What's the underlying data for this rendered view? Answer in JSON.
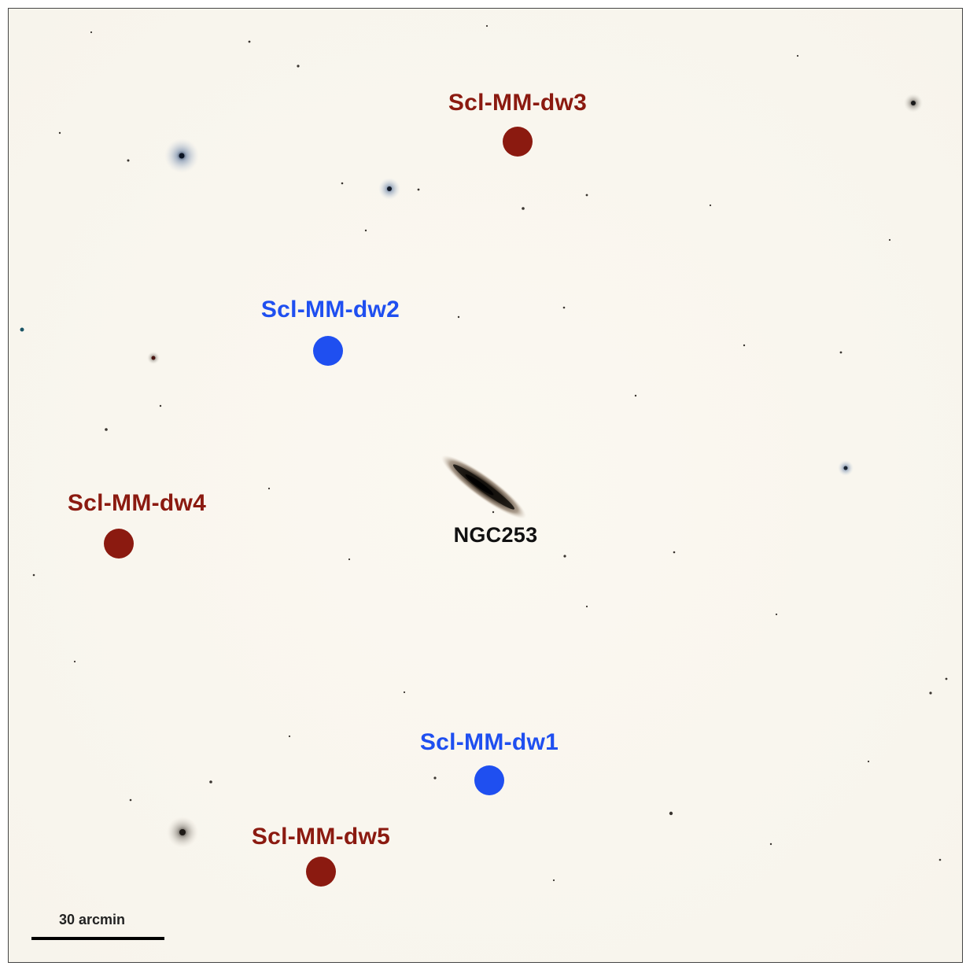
{
  "galaxy": {
    "name": "NGC253"
  },
  "dwarfs": [
    {
      "name": "Scl-MM-dw3",
      "color": "#8b1a10"
    },
    {
      "name": "Scl-MM-dw2",
      "color": "#1f4ff0"
    },
    {
      "name": "Scl-MM-dw4",
      "color": "#8b1a10"
    },
    {
      "name": "Scl-MM-dw1",
      "color": "#1f4ff0"
    },
    {
      "name": "Scl-MM-dw5",
      "color": "#8b1a10"
    }
  ],
  "scale": {
    "label": "30 arcmin"
  }
}
